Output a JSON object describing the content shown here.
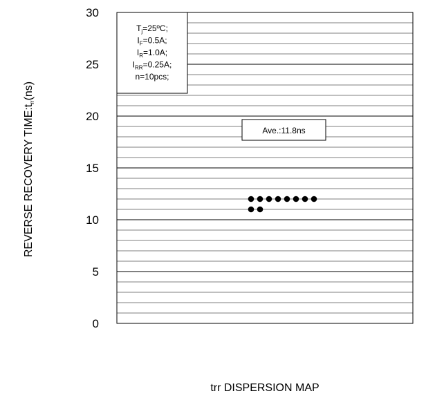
{
  "chart_data": {
    "type": "scatter",
    "title": "",
    "xlabel": "trr DISPERSION MAP",
    "ylabel_parts": {
      "main": "REVERSE RECOVERY TIME:t",
      "sub": "rr",
      "unit": "(ns)"
    },
    "ylim": [
      0,
      30
    ],
    "y_ticks": [
      "0",
      "5",
      "10",
      "15",
      "20",
      "25",
      "30"
    ],
    "minor_grid_step": 1,
    "grid": true,
    "points": [
      {
        "x": 1,
        "y": 12
      },
      {
        "x": 2,
        "y": 12
      },
      {
        "x": 3,
        "y": 12
      },
      {
        "x": 4,
        "y": 12
      },
      {
        "x": 5,
        "y": 12
      },
      {
        "x": 6,
        "y": 12
      },
      {
        "x": 7,
        "y": 12
      },
      {
        "x": 8,
        "y": 12
      },
      {
        "x": 1,
        "y": 11
      },
      {
        "x": 2,
        "y": 11
      }
    ],
    "conditions": [
      {
        "main": "T",
        "sub": "j",
        "rest": "=25ºC;"
      },
      {
        "main": "I",
        "sub": "F",
        "rest": "=0.5A;"
      },
      {
        "main": "I",
        "sub": "R",
        "rest": "=1.0A;"
      },
      {
        "main": "I",
        "sub": "RR",
        "rest": "=0.25A;"
      },
      {
        "main": "n=10pcs;",
        "sub": "",
        "rest": ""
      }
    ],
    "average_label": "Ave.:11.8ns",
    "colors": {
      "points": "#000000",
      "grid": "#000000",
      "background": "#ffffff"
    }
  }
}
